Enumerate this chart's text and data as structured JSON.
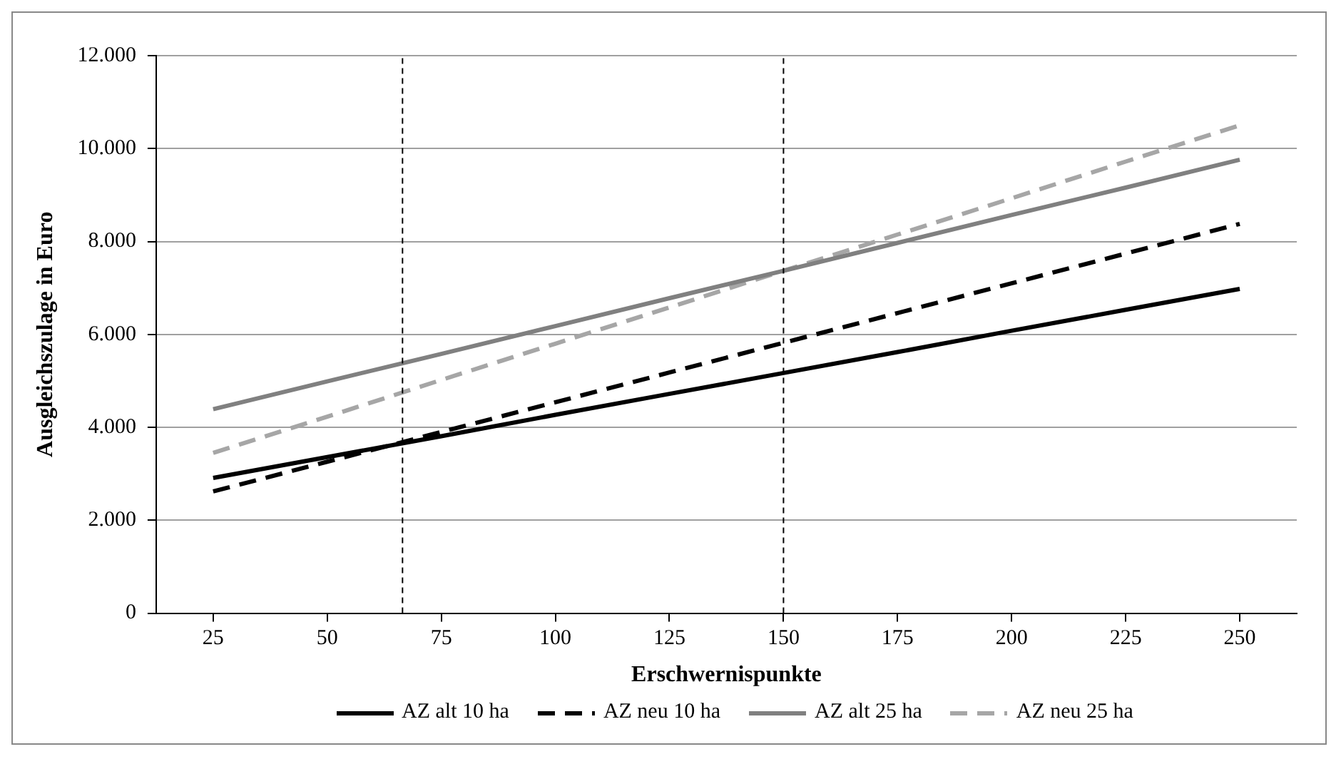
{
  "chart_data": {
    "type": "line",
    "xlabel": "Erschwernispunkte",
    "ylabel": "Ausgleichszulage in Euro",
    "x": [
      25,
      50,
      75,
      100,
      125,
      150,
      175,
      200,
      225,
      250
    ],
    "xlim": [
      12.5,
      262.5
    ],
    "xticks": [
      25,
      50,
      75,
      100,
      125,
      150,
      175,
      200,
      225,
      250
    ],
    "ylim": [
      0,
      12000
    ],
    "yticks": [
      0,
      {
        "value": 2000,
        "label": "2.000"
      },
      {
        "value": 4000,
        "label": "4.000"
      },
      {
        "value": 6000,
        "label": "6.000"
      },
      {
        "value": 8000,
        "label": "8.000"
      },
      {
        "value": 10000,
        "label": "10.000"
      },
      {
        "value": 12000,
        "label": "12.000"
      }
    ],
    "series": [
      {
        "name": "AZ alt 10 ha",
        "color": "#000000",
        "line_style": "solid",
        "values": [
          2910,
          3360,
          3810,
          4270,
          4720,
          5170,
          5620,
          6080,
          6530,
          6980
        ]
      },
      {
        "name": "AZ neu 10 ha",
        "color": "#000000",
        "line_style": "dashed",
        "values": [
          2620,
          3260,
          3900,
          4540,
          5180,
          5820,
          6460,
          7100,
          7740,
          8380
        ]
      },
      {
        "name": "AZ alt 25 ha",
        "color": "#808080",
        "line_style": "solid",
        "values": [
          4390,
          4990,
          5580,
          6180,
          6780,
          7370,
          7970,
          8570,
          9160,
          9760
        ]
      },
      {
        "name": "AZ neu 25 ha",
        "color": "#a6a6a6",
        "line_style": "dashed",
        "values": [
          3450,
          4230,
          5020,
          5800,
          6580,
          7370,
          8150,
          8930,
          9720,
          10500
        ]
      }
    ],
    "ref_lines": [
      {
        "axis": "x",
        "value": 66.5,
        "color": "#000000",
        "line_style": "dashed"
      },
      {
        "axis": "x",
        "value": 150,
        "color": "#000000",
        "line_style": "dashed"
      }
    ],
    "grid": "y",
    "legend": "bottom",
    "marker": "none"
  }
}
